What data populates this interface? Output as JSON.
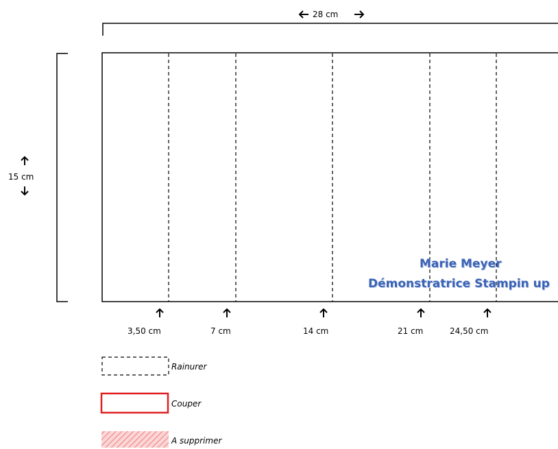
{
  "dimensions": {
    "width_label": "28 cm",
    "height_label": "15 cm"
  },
  "score_lines": [
    {
      "label": "3,50 cm"
    },
    {
      "label": "7 cm"
    },
    {
      "label": "14 cm"
    },
    {
      "label": "21  cm"
    },
    {
      "label": "24,50 cm"
    }
  ],
  "watermark": {
    "line1": "Marie Meyer",
    "line2": "Démonstratrice Stampin up",
    "color": "#3b63b5"
  },
  "legend": {
    "score_label": "Rainurer",
    "cut_label": "Couper",
    "remove_label": "A supprimer",
    "cut_color": "#e02020",
    "remove_color": "#f08a8a"
  }
}
